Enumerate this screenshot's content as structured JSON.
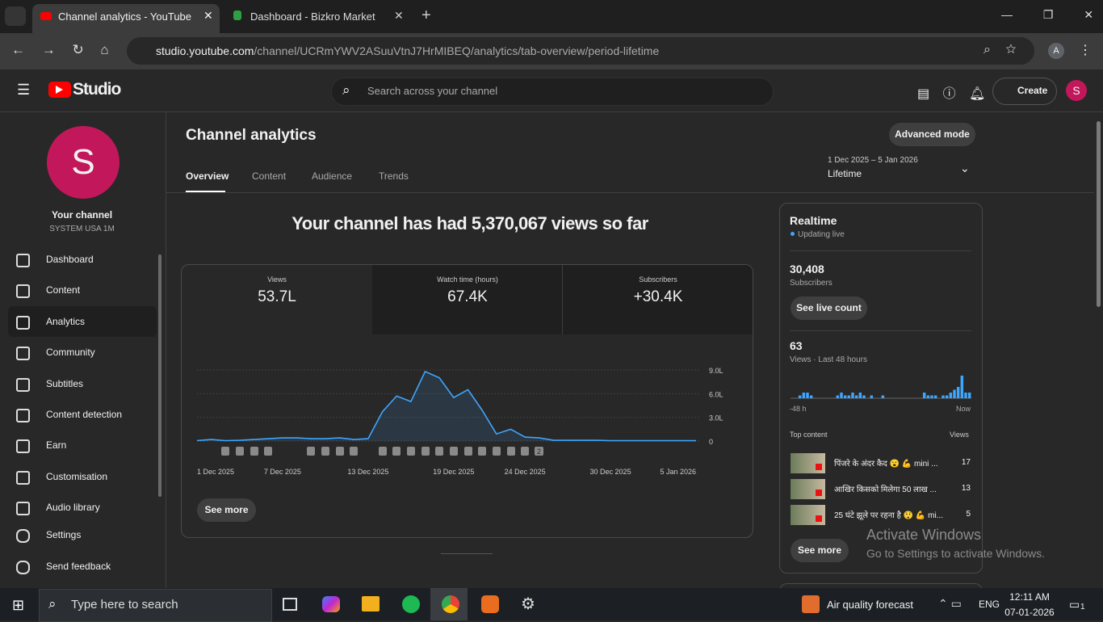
{
  "browser": {
    "tabs": [
      {
        "title": "Channel analytics - YouTube St"
      },
      {
        "title": "Dashboard - Bizkro Market"
      }
    ],
    "url": {
      "host": "studio.youtube.com",
      "path": "/channel/UCRmYWV2ASuuVtnJ7HrMIBEQ/analytics/tab-overview/period-lifetime"
    },
    "profile": "A"
  },
  "studio": {
    "logo": "Studio",
    "search": "Search across your channel",
    "create": "Create",
    "avatar": "S"
  },
  "sidebar": {
    "avatar": "S",
    "channel": "Your channel",
    "handle": "SYSTEM USA 1M",
    "nav": [
      "Dashboard",
      "Content",
      "Analytics",
      "Community",
      "Subtitles",
      "Content detection",
      "Earn",
      "Customisation",
      "Audio library"
    ],
    "footer": [
      "Settings",
      "Send feedback"
    ]
  },
  "analytics": {
    "title": "Channel analytics",
    "advanced": "Advanced mode",
    "tabs": [
      "Overview",
      "Content",
      "Audience",
      "Trends"
    ],
    "period_range": "1 Dec 2025 – 5 Jan 2026",
    "period": "Lifetime",
    "headline": "Your channel has had 5,370,067 views so far",
    "metrics": [
      {
        "label": "Views",
        "value": "53.7L"
      },
      {
        "label": "Watch time (hours)",
        "value": "67.4K"
      },
      {
        "label": "Subscribers",
        "value": "+30.4K"
      }
    ],
    "see_more": "See more"
  },
  "chart_data": {
    "type": "line",
    "badge": "2",
    "color": "#3ea6ff",
    "grid": true,
    "categories": [
      "1 Dec 2025",
      null,
      null,
      null,
      null,
      null,
      "7 Dec 2025",
      null,
      null,
      null,
      null,
      null,
      "13 Dec 2025",
      null,
      null,
      null,
      null,
      null,
      "19 Dec 2025",
      null,
      null,
      null,
      null,
      "24 Dec 2025",
      null,
      null,
      null,
      null,
      null,
      "30 Dec 2025",
      null,
      null,
      null,
      null,
      null,
      "5 Jan 2026"
    ],
    "values": [
      5000,
      20000,
      5000,
      10000,
      20000,
      30000,
      40000,
      40000,
      30000,
      30000,
      40000,
      20000,
      30000,
      370000,
      570000,
      500000,
      880000,
      800000,
      550000,
      650000,
      390000,
      90000,
      150000,
      50000,
      40000,
      10000,
      10000,
      10000,
      10000,
      5000,
      5000,
      5000,
      5000,
      5000,
      5000,
      5000
    ],
    "ylim": [
      0,
      900000
    ],
    "yticks": [
      0,
      {
        "value": 300000,
        "label": "3.0L"
      },
      {
        "value": 600000,
        "label": "6.0L"
      },
      {
        "value": 900000,
        "label": "9.0L"
      }
    ]
  },
  "realtime": {
    "title": "Realtime",
    "status": "Updating live",
    "subscribers": "30,408",
    "subscribers_label": "Subscribers",
    "live_count": "See live count",
    "views": "63",
    "views_label": "Views · Last 48 hours",
    "bars": [
      0,
      0,
      1,
      2,
      2,
      1,
      0,
      0,
      0,
      0,
      0,
      0,
      1,
      2,
      1,
      1,
      2,
      1,
      2,
      1,
      0,
      1,
      0,
      0,
      1,
      0,
      0,
      0,
      0,
      0,
      0,
      0,
      0,
      0,
      0,
      2,
      1,
      1,
      1,
      0,
      1,
      1,
      2,
      3,
      4,
      8,
      2,
      2
    ],
    "start": "-48 h",
    "end": "Now",
    "top_title": "Top content",
    "top_views": "Views",
    "top": [
      {
        "title": "पिंजरे के अंदर कैद 😮 💪 mini ...",
        "views": 17
      },
      {
        "title": "आखिर किसको मिलेगा 50 लाख ...",
        "views": 13
      },
      {
        "title": "25 घंटे झूले पर रहना है 😲 💪 mi...",
        "views": 5
      }
    ],
    "see_more": "See more"
  },
  "watermark": {
    "title": "Activate Windows",
    "text": "Go to Settings to activate Windows."
  },
  "taskbar": {
    "search": "Type here to search",
    "weather": "Air quality forecast",
    "lang": "ENG",
    "time": "12:11 AM",
    "date": "07-01-2026",
    "notifications": "1"
  }
}
